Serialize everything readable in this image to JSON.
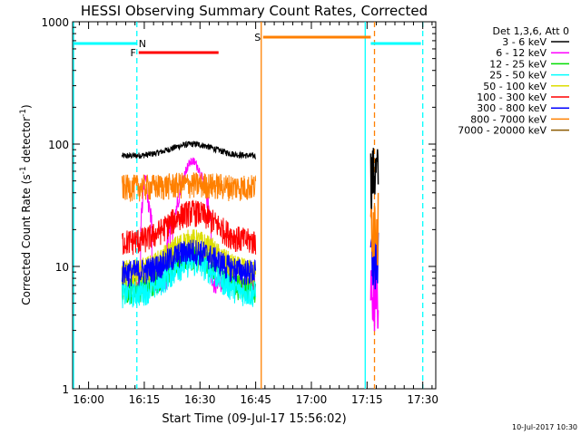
{
  "chart_data": {
    "type": "line",
    "title": "HESSI Observing Summary Count Rates, Corrected",
    "xlabel": "Start Time (09-Jul-17 15:56:02)",
    "ylabel_main": "Corrected Count Rate (s",
    "ylabel_sup1": "-1",
    "ylabel_mid": " detector",
    "ylabel_sup2": "-1",
    "ylabel_end": ")",
    "yscale": "log",
    "ylim": [
      1,
      1000
    ],
    "xlim_minutes": [
      -4,
      34
    ],
    "x_ticks": [
      {
        "t": 0,
        "label": "16:00"
      },
      {
        "t": 15,
        "label": "16:15"
      },
      {
        "t": 30,
        "label": "16:30"
      },
      {
        "t": 45,
        "label": "16:45"
      },
      {
        "t": 60,
        "label": "17:00"
      },
      {
        "t": 75,
        "label": "17:15"
      },
      {
        "t": 90,
        "label": "17:30"
      }
    ],
    "y_ticks": [
      {
        "v": 1,
        "label": "1"
      },
      {
        "v": 10,
        "label": "10"
      },
      {
        "v": 100,
        "label": "100"
      },
      {
        "v": 1000,
        "label": "1000"
      }
    ],
    "legend_header": "Det 1,3,6, Att 0",
    "legend_position": "right",
    "series": [
      {
        "name": "3 - 6 keV",
        "color": "#000000",
        "base": 80,
        "peak": 1.25
      },
      {
        "name": "6 - 12 keV",
        "color": "#ff00ff",
        "base": 6,
        "peak": 10
      },
      {
        "name": "12 - 25 keV",
        "color": "#00dd00",
        "base": 6.5,
        "peak": 1.9
      },
      {
        "name": "25 - 50 keV",
        "color": "#00ffff",
        "base": 6,
        "peak": 1.8
      },
      {
        "name": "50 - 100 keV",
        "color": "#dddd00",
        "base": 9,
        "peak": 1.8
      },
      {
        "name": "100 - 300 keV",
        "color": "#ff0000",
        "base": 16,
        "peak": 1.75
      },
      {
        "name": "300 - 800 keV",
        "color": "#0000ff",
        "base": 9,
        "peak": 1.5
      },
      {
        "name": "800 - 7000 keV",
        "color": "#ff8000",
        "base": 45,
        "peak": 1.05
      },
      {
        "name": "7000 - 20000 keV",
        "color": "#8b5a00",
        "base": 0,
        "peak": 1
      }
    ],
    "segments": [
      {
        "t_start": 9,
        "t_end": 45
      },
      {
        "t_start": 76,
        "t_end": 78
      }
    ],
    "flags": [
      {
        "label": "N",
        "color": "#00ffff",
        "bar_start": -4,
        "bar_end": 13,
        "label_t": 14.5
      },
      {
        "label": "F",
        "color": "#ff0000",
        "bar_start": 13.5,
        "bar_end": 35,
        "label_t": 12
      },
      {
        "label": "S",
        "color": "#ff8000",
        "bar_start": 47,
        "bar_end": 76,
        "label_t": 45.5
      },
      {
        "label": "",
        "color": "#00ffff",
        "bar_start": 76,
        "bar_end": 89.5,
        "label_t": 0
      }
    ],
    "vertical_markers": [
      {
        "t": -4.3,
        "color": "#00ffff",
        "style": "solid"
      },
      {
        "t": 13,
        "color": "#00ffff",
        "style": "dashed"
      },
      {
        "t": 46.5,
        "color": "#ff8000",
        "style": "solid"
      },
      {
        "t": 74.5,
        "color": "#00ffff",
        "style": "solid"
      },
      {
        "t": 77,
        "color": "#ff8000",
        "style": "dashed"
      },
      {
        "t": 90,
        "color": "#00ffff",
        "style": "dashed"
      }
    ]
  },
  "footer_timestamp": "10-Jul-2017 10:30"
}
